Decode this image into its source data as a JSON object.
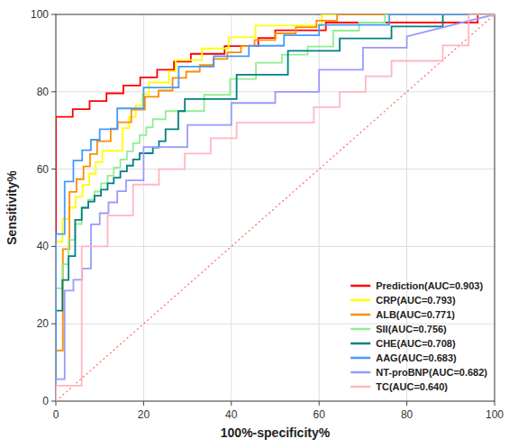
{
  "chart_data": {
    "type": "line",
    "xlabel": "100%-specificity%",
    "ylabel": "Sensitivity%",
    "xlim": [
      0,
      100
    ],
    "ylim": [
      0,
      100
    ],
    "xticks": [
      0,
      20,
      40,
      60,
      80,
      100
    ],
    "yticks": [
      0,
      20,
      40,
      60,
      80,
      100
    ],
    "grid": true,
    "legend": "lower right",
    "reference_line": {
      "x": [
        0,
        100
      ],
      "values": [
        0,
        100
      ],
      "color": "#ff6666",
      "line_style": "dotted"
    },
    "series": [
      {
        "name": "Prediction(AUC=0.903)",
        "color": "#ff0000",
        "x": [
          0,
          0,
          3.85,
          3.85,
          7.69,
          7.69,
          11.54,
          11.54,
          15.38,
          15.38,
          19.23,
          19.23,
          23.08,
          23.08,
          26.92,
          26.92,
          30.77,
          30.77,
          34.62,
          34.62,
          38.46,
          38.46,
          42.31,
          42.31,
          46.15,
          46.15,
          50.0,
          50.0,
          53.85,
          53.85,
          57.69,
          57.69,
          61.54,
          61.54,
          65.38,
          65.38,
          69.23,
          69.23,
          73.08,
          73.08,
          76.92,
          76.92,
          80.77,
          80.77,
          84.62,
          84.62,
          88.46,
          88.46,
          92.31,
          92.31,
          96.15,
          96.15,
          100
        ],
        "values": [
          0,
          73.5,
          73.5,
          75.5,
          75.5,
          77.6,
          77.6,
          79.6,
          79.6,
          81.6,
          81.6,
          83.7,
          83.7,
          85.7,
          85.7,
          87.8,
          87.8,
          89.8,
          89.8,
          89.8,
          89.8,
          91.8,
          91.8,
          91.8,
          91.8,
          93.9,
          93.9,
          95.9,
          95.9,
          95.9,
          95.9,
          95.9,
          95.9,
          97.9,
          97.9,
          97.9,
          97.9,
          97.9,
          97.9,
          97.9,
          97.9,
          97.9,
          97.9,
          97.9,
          97.9,
          97.9,
          97.9,
          97.9,
          97.9,
          97.9,
          97.9,
          100,
          100
        ]
      },
      {
        "name": "CRP(AUC=0.793)",
        "color": "#ffff00",
        "x": [
          0,
          0,
          1.5,
          1.5,
          3.0,
          3.0,
          4.5,
          4.5,
          6.1,
          6.1,
          7.6,
          7.6,
          9.1,
          9.1,
          10.6,
          10.6,
          12.1,
          12.1,
          15.2,
          15.2,
          16.7,
          16.7,
          18.2,
          18.2,
          19.7,
          19.7,
          21.2,
          21.2,
          25.8,
          25.8,
          27.3,
          27.3,
          30.3,
          30.3,
          33.3,
          33.3,
          36.4,
          36.4,
          39.4,
          39.4,
          42.4,
          42.4,
          45.5,
          45.5,
          48.5,
          48.5,
          54.5,
          54.5,
          60.6,
          60.6,
          66.7,
          66.7,
          72.7,
          72.7,
          78.8,
          78.8,
          84.8,
          84.8,
          100
        ],
        "values": [
          0,
          41.2,
          41.2,
          47.1,
          47.1,
          50.0,
          50.0,
          52.9,
          52.9,
          55.9,
          55.9,
          58.8,
          58.8,
          61.8,
          61.8,
          64.7,
          64.7,
          64.7,
          64.7,
          70.6,
          70.6,
          73.5,
          73.5,
          76.5,
          76.5,
          79.4,
          79.4,
          82.4,
          82.4,
          85.3,
          85.3,
          88.2,
          88.2,
          88.2,
          88.2,
          91.2,
          91.2,
          91.2,
          91.2,
          94.1,
          94.1,
          94.1,
          94.1,
          97.1,
          97.1,
          97.1,
          97.1,
          97.1,
          97.1,
          100,
          100,
          100,
          100,
          100,
          100,
          100,
          100,
          100,
          100
        ]
      },
      {
        "name": "ALB(AUC=0.771)",
        "color": "#ff8c00",
        "x": [
          0,
          0,
          1.6,
          1.6,
          3.1,
          3.1,
          4.7,
          4.7,
          6.3,
          6.3,
          7.8,
          7.8,
          9.4,
          9.4,
          10.9,
          10.9,
          12.5,
          12.5,
          14.1,
          14.1,
          17.2,
          17.2,
          20.3,
          20.3,
          23.4,
          23.4,
          26.6,
          26.6,
          29.7,
          29.7,
          32.8,
          32.8,
          35.9,
          35.9,
          39.1,
          39.1,
          42.2,
          42.2,
          45.3,
          45.3,
          50.0,
          50.0,
          54.7,
          54.7,
          59.4,
          59.4,
          64.1,
          64.1,
          68.8,
          68.8,
          73.4,
          73.4,
          78.1,
          78.1,
          82.8,
          82.8,
          87.5,
          87.5,
          100
        ],
        "values": [
          0,
          13.1,
          13.1,
          39.3,
          39.3,
          54.1,
          54.1,
          57.4,
          57.4,
          60.7,
          60.7,
          63.9,
          63.9,
          67.2,
          67.2,
          67.2,
          67.2,
          70.5,
          70.5,
          72.1,
          72.1,
          75.4,
          75.4,
          78.7,
          78.7,
          80.3,
          80.3,
          83.6,
          83.6,
          85.2,
          85.2,
          86.9,
          86.9,
          88.5,
          88.5,
          90.2,
          90.2,
          91.8,
          91.8,
          93.4,
          93.4,
          95.1,
          95.1,
          96.7,
          96.7,
          98.4,
          98.4,
          100,
          100,
          100,
          100,
          100,
          100,
          100,
          100,
          100,
          100,
          100,
          100
        ]
      },
      {
        "name": "SII(AUC=0.756)",
        "color": "#90ee90",
        "x": [
          0,
          0,
          1.5,
          1.5,
          2.9,
          2.9,
          4.4,
          4.4,
          5.9,
          5.9,
          7.4,
          7.4,
          8.8,
          8.8,
          10.3,
          10.3,
          11.8,
          11.8,
          13.2,
          13.2,
          14.7,
          14.7,
          16.2,
          16.2,
          17.6,
          17.6,
          19.1,
          19.1,
          20.6,
          20.6,
          22.1,
          22.1,
          23.5,
          23.5,
          25.0,
          25.0,
          26.5,
          26.5,
          27.9,
          27.9,
          33.8,
          33.8,
          39.7,
          39.7,
          45.6,
          45.6,
          51.5,
          51.5,
          57.4,
          57.4,
          63.2,
          63.2,
          69.1,
          69.1,
          75.0,
          75.0,
          80.9,
          80.9,
          86.8,
          86.8,
          100
        ],
        "values": [
          0,
          29.2,
          29.2,
          35.4,
          35.4,
          41.7,
          41.7,
          45.8,
          45.8,
          50.0,
          50.0,
          52.1,
          52.1,
          54.2,
          54.2,
          56.3,
          56.3,
          58.3,
          58.3,
          60.4,
          60.4,
          62.5,
          62.5,
          64.6,
          64.6,
          66.7,
          66.7,
          68.8,
          68.8,
          70.8,
          70.8,
          72.9,
          72.9,
          72.9,
          72.9,
          75.0,
          75.0,
          75.0,
          75.0,
          75.0,
          75.0,
          79.2,
          79.2,
          83.3,
          83.3,
          87.5,
          87.5,
          89.6,
          89.6,
          91.7,
          91.7,
          95.8,
          95.8,
          97.9,
          97.9,
          100,
          100,
          100,
          100,
          100,
          100
        ]
      },
      {
        "name": "CHE(AUC=0.708)",
        "color": "#008080",
        "x": [
          0,
          0,
          1.5,
          1.5,
          2.9,
          2.9,
          4.4,
          4.4,
          5.9,
          5.9,
          7.4,
          7.4,
          8.8,
          8.8,
          10.3,
          10.3,
          11.8,
          11.8,
          13.2,
          13.2,
          14.7,
          14.7,
          16.2,
          16.2,
          17.6,
          17.6,
          19.1,
          19.1,
          20.6,
          20.6,
          22.1,
          22.1,
          23.5,
          23.5,
          25.0,
          25.0,
          26.5,
          26.5,
          27.9,
          27.9,
          29.4,
          29.4,
          41.2,
          41.2,
          52.9,
          52.9,
          64.7,
          64.7,
          76.5,
          76.5,
          88.2,
          88.2,
          100
        ],
        "values": [
          0,
          23.4,
          23.4,
          31.3,
          31.3,
          37.5,
          37.5,
          46.9,
          46.9,
          50.0,
          50.0,
          51.6,
          51.6,
          53.1,
          53.1,
          54.7,
          54.7,
          56.3,
          56.3,
          57.8,
          57.8,
          59.4,
          59.4,
          60.9,
          60.9,
          62.5,
          62.5,
          64.1,
          64.1,
          64.1,
          64.1,
          65.6,
          65.6,
          67.2,
          67.2,
          70.3,
          70.3,
          70.3,
          70.3,
          75.0,
          75.0,
          78.1,
          78.1,
          84.4,
          84.4,
          90.6,
          90.6,
          93.8,
          93.8,
          96.9,
          96.9,
          100,
          100
        ]
      },
      {
        "name": "AAG(AUC=0.683)",
        "color": "#4499ff",
        "x": [
          0,
          0,
          2.0,
          2.0,
          4.0,
          4.0,
          6.0,
          6.0,
          8.0,
          8.0,
          10.0,
          10.0,
          14.0,
          14.0,
          20.0,
          20.0,
          28.0,
          28.0,
          36.0,
          36.0,
          44.0,
          44.0,
          52.0,
          52.0,
          60.0,
          60.0,
          68.0,
          68.0,
          76.0,
          76.0,
          84.0,
          84.0,
          92.0,
          92.0,
          100
        ],
        "values": [
          0,
          43.2,
          43.2,
          56.8,
          56.8,
          62.2,
          62.2,
          64.9,
          64.9,
          67.6,
          67.6,
          70.3,
          70.3,
          75.7,
          75.7,
          81.1,
          81.1,
          86.5,
          86.5,
          89.2,
          89.2,
          91.9,
          91.9,
          94.6,
          94.6,
          97.3,
          97.3,
          97.3,
          97.3,
          100,
          100,
          100,
          100,
          100,
          100
        ]
      },
      {
        "name": "NT-proBNP(AUC=0.682)",
        "color": "#9999ff",
        "x": [
          0,
          0,
          2.0,
          2.0,
          4.0,
          4.0,
          6.0,
          6.0,
          8.0,
          8.0,
          10.0,
          10.0,
          12.0,
          12.0,
          14.0,
          14.0,
          16.0,
          16.0,
          18.0,
          18.0,
          20.0,
          20.0,
          30.0,
          30.0,
          40.0,
          40.0,
          50.0,
          50.0,
          60.0,
          60.0,
          70.0,
          70.0,
          80.0,
          80.0,
          100
        ],
        "values": [
          0,
          5.7,
          5.7,
          28.6,
          28.6,
          31.4,
          31.4,
          34.3,
          34.3,
          45.7,
          45.7,
          48.6,
          48.6,
          51.4,
          51.4,
          54.3,
          54.3,
          57.1,
          57.1,
          57.1,
          57.1,
          65.7,
          65.7,
          71.4,
          71.4,
          77.1,
          77.1,
          80.0,
          80.0,
          85.7,
          85.7,
          91.4,
          91.4,
          94.3,
          100
        ]
      },
      {
        "name": "TC(AUC=0.640)",
        "color": "#ffb6c1",
        "x": [
          0,
          0,
          5.9,
          5.9,
          11.8,
          11.8,
          17.6,
          17.6,
          23.5,
          23.5,
          29.4,
          29.4,
          35.3,
          35.3,
          41.2,
          41.2,
          47.1,
          47.1,
          52.9,
          52.9,
          58.8,
          58.8,
          64.7,
          64.7,
          70.6,
          70.6,
          76.5,
          76.5,
          82.4,
          82.4,
          88.2,
          88.2,
          94.1,
          94.1,
          100
        ],
        "values": [
          0,
          4.0,
          4.0,
          40.0,
          40.0,
          48.0,
          48.0,
          56.0,
          56.0,
          60.0,
          60.0,
          64.0,
          64.0,
          68.0,
          68.0,
          72.0,
          72.0,
          72.0,
          72.0,
          72.0,
          72.0,
          76.0,
          76.0,
          80.0,
          80.0,
          84.0,
          84.0,
          88.0,
          88.0,
          88.0,
          88.0,
          92.0,
          92.0,
          100,
          100
        ]
      }
    ]
  }
}
